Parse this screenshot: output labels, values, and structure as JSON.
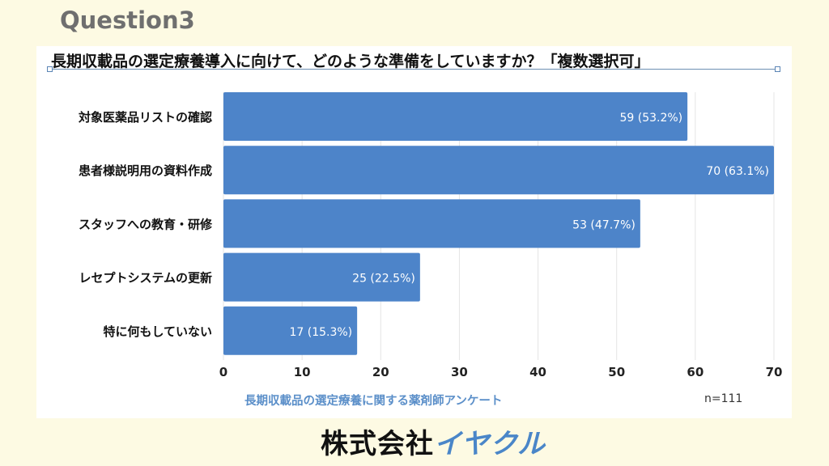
{
  "header": {
    "question": "Question3",
    "company_prefix": "株式会社",
    "company_brand": "イヤクル"
  },
  "chart_data": {
    "type": "bar",
    "orientation": "horizontal",
    "title": "長期収載品の選定療養導入に向けて、どのような準備をしていますか？「複数選択可」",
    "categories": [
      "対象医薬品リストの確認",
      "患者様説明用の資料作成",
      "スタッフへの教育・研修",
      "レセプトシステムの更新",
      "特に何もしていない"
    ],
    "values": [
      59,
      70,
      53,
      25,
      17
    ],
    "data_labels": [
      "59 (53.2%)",
      "70 (63.1%)",
      "53 (47.7%)",
      "25 (22.5%)",
      "17 (15.3%)"
    ],
    "xlim": [
      0,
      70
    ],
    "xticks": [
      0,
      10,
      20,
      30,
      40,
      50,
      60,
      70
    ],
    "grid": true,
    "bar_color": "#4d84c9",
    "source": "長期収載品の選定療養に関する薬剤師アンケート",
    "sample_size": "n=111"
  }
}
